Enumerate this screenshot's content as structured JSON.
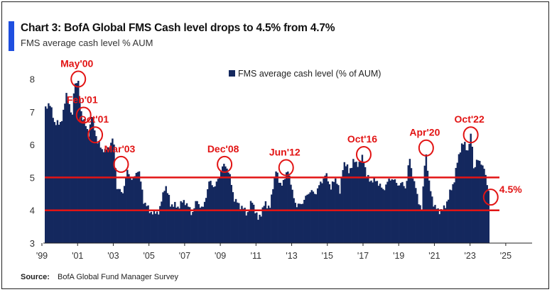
{
  "header": {
    "title": "Chart 3: BofA Global FMS Cash level drops to 4.5% from 4.7%",
    "subtitle": "FMS average cash level % AUM"
  },
  "source": {
    "label": "Source:",
    "text": "BofA Global Fund Manager Survey"
  },
  "colors": {
    "bars": "#14285e",
    "highlight": "#e21414",
    "accent": "#1f4fe0"
  },
  "chart_data": {
    "type": "bar",
    "legend": {
      "label": "FMS average cash level (% of AUM)",
      "placement": "top-center"
    },
    "ylim": [
      3,
      8.4
    ],
    "yticks": [
      "3",
      "4",
      "5",
      "6",
      "7",
      "8"
    ],
    "xlim": [
      1999,
      2026
    ],
    "xticks": [
      "'99",
      "'01",
      "'03",
      "'05",
      "'07",
      "'09",
      "'11",
      "'13",
      "'15",
      "'17",
      "'19",
      "'21",
      "'23",
      "'25"
    ],
    "grid": false,
    "reference_lines": [
      5.0,
      4.0
    ],
    "series": [
      {
        "keypoints": [
          [
            1999.0,
            7.1
          ],
          [
            1999.2,
            7.3
          ],
          [
            1999.5,
            6.7
          ],
          [
            1999.8,
            6.6
          ],
          [
            2000.0,
            7.0
          ],
          [
            2000.2,
            7.6
          ],
          [
            2000.3,
            7.3
          ],
          [
            2000.5,
            6.8
          ],
          [
            2000.6,
            7.8
          ],
          [
            2000.8,
            8.0
          ],
          [
            2001.0,
            7.0
          ],
          [
            2001.4,
            6.3
          ],
          [
            2001.6,
            6.9
          ],
          [
            2001.9,
            6.1
          ],
          [
            2002.1,
            5.9
          ],
          [
            2002.4,
            5.8
          ],
          [
            2002.8,
            6.2
          ],
          [
            2003.0,
            4.7
          ],
          [
            2003.3,
            4.5
          ],
          [
            2003.6,
            5.2
          ],
          [
            2003.9,
            4.9
          ],
          [
            2004.2,
            5.3
          ],
          [
            2004.5,
            4.3
          ],
          [
            2004.8,
            4.0
          ],
          [
            2005.1,
            3.9
          ],
          [
            2005.4,
            4.0
          ],
          [
            2005.7,
            4.8
          ],
          [
            2006.0,
            4.2
          ],
          [
            2006.4,
            4.1
          ],
          [
            2006.8,
            4.3
          ],
          [
            2007.2,
            3.9
          ],
          [
            2007.5,
            4.3
          ],
          [
            2007.8,
            4.0
          ],
          [
            2008.2,
            4.9
          ],
          [
            2008.5,
            4.7
          ],
          [
            2008.9,
            5.3
          ],
          [
            2009.1,
            5.4
          ],
          [
            2009.3,
            5.1
          ],
          [
            2009.6,
            4.3
          ],
          [
            2010.0,
            4.1
          ],
          [
            2010.3,
            3.9
          ],
          [
            2010.6,
            4.3
          ],
          [
            2010.9,
            3.7
          ],
          [
            2011.3,
            4.2
          ],
          [
            2011.6,
            4.1
          ],
          [
            2011.9,
            5.3
          ],
          [
            2012.1,
            4.8
          ],
          [
            2012.4,
            4.9
          ],
          [
            2012.6,
            5.3
          ],
          [
            2012.8,
            4.6
          ],
          [
            2013.1,
            4.1
          ],
          [
            2013.5,
            4.3
          ],
          [
            2013.8,
            4.6
          ],
          [
            2014.1,
            4.5
          ],
          [
            2014.4,
            4.8
          ],
          [
            2014.7,
            5.1
          ],
          [
            2015.0,
            4.7
          ],
          [
            2015.3,
            5.0
          ],
          [
            2015.5,
            4.5
          ],
          [
            2015.7,
            5.5
          ],
          [
            2016.0,
            5.2
          ],
          [
            2016.3,
            5.5
          ],
          [
            2016.6,
            5.4
          ],
          [
            2016.8,
            5.7
          ],
          [
            2017.0,
            5.0
          ],
          [
            2017.3,
            4.9
          ],
          [
            2017.6,
            4.9
          ],
          [
            2017.9,
            4.6
          ],
          [
            2018.1,
            4.8
          ],
          [
            2018.4,
            5.0
          ],
          [
            2018.7,
            4.8
          ],
          [
            2019.0,
            4.8
          ],
          [
            2019.2,
            4.7
          ],
          [
            2019.4,
            5.6
          ],
          [
            2019.6,
            5.0
          ],
          [
            2019.9,
            4.3
          ],
          [
            2020.1,
            4.0
          ],
          [
            2020.3,
            5.9
          ],
          [
            2020.5,
            4.8
          ],
          [
            2020.8,
            4.1
          ],
          [
            2021.0,
            4.0
          ],
          [
            2021.3,
            4.0
          ],
          [
            2021.6,
            4.4
          ],
          [
            2021.9,
            4.9
          ],
          [
            2022.1,
            5.5
          ],
          [
            2022.3,
            6.0
          ],
          [
            2022.5,
            6.0
          ],
          [
            2022.7,
            5.8
          ],
          [
            2022.8,
            6.3
          ],
          [
            2022.9,
            6.1
          ],
          [
            2023.0,
            5.3
          ],
          [
            2023.2,
            5.5
          ],
          [
            2023.4,
            5.5
          ],
          [
            2023.6,
            5.2
          ],
          [
            2023.8,
            4.7
          ],
          [
            2023.9,
            4.5
          ]
        ]
      }
    ],
    "annotations": [
      {
        "label": "May'00",
        "x": 2000.8,
        "y": 8.0
      },
      {
        "label": "Feb'01",
        "x": 2001.1,
        "y": 6.9
      },
      {
        "label": "Oct'01",
        "x": 2001.75,
        "y": 6.3
      },
      {
        "label": "Mar'03",
        "x": 2003.2,
        "y": 5.4
      },
      {
        "label": "Dec'08",
        "x": 2009.0,
        "y": 5.4
      },
      {
        "label": "Jun'12",
        "x": 2012.45,
        "y": 5.3
      },
      {
        "label": "Oct'16",
        "x": 2016.8,
        "y": 5.7
      },
      {
        "label": "Apr'20",
        "x": 2020.3,
        "y": 5.9
      },
      {
        "label": "Oct'22",
        "x": 2022.8,
        "y": 6.3
      },
      {
        "label": "4.5%",
        "x": 2023.92,
        "y": 4.4
      }
    ]
  }
}
